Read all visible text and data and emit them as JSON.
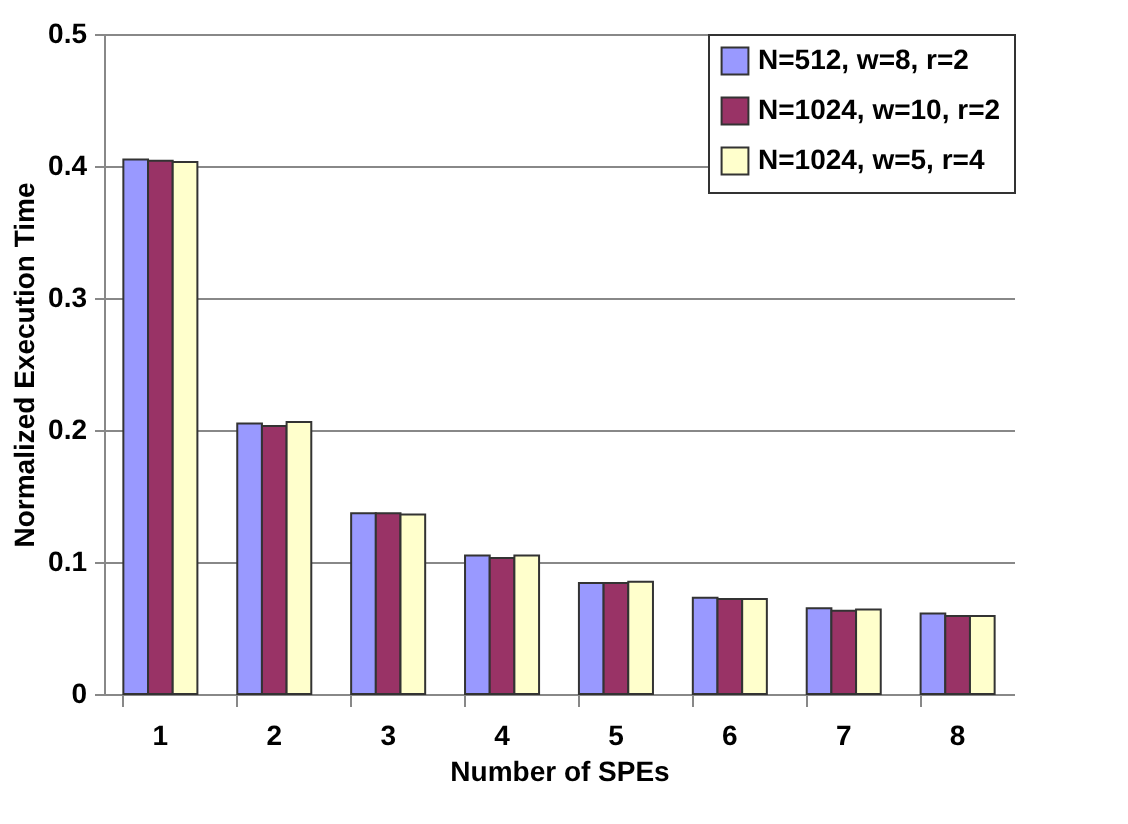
{
  "chart_data": {
    "type": "bar",
    "xlabel": "Number of SPEs",
    "ylabel": "Normalized Execution Time",
    "categories": [
      "1",
      "2",
      "3",
      "4",
      "5",
      "6",
      "7",
      "8"
    ],
    "series": [
      {
        "name": "N=512, w=8, r=2",
        "color": "#9999ff",
        "values": [
          0.405,
          0.205,
          0.137,
          0.105,
          0.084,
          0.073,
          0.065,
          0.061
        ]
      },
      {
        "name": "N=1024, w=10, r=2",
        "color": "#993366",
        "values": [
          0.404,
          0.203,
          0.137,
          0.103,
          0.084,
          0.072,
          0.063,
          0.059
        ]
      },
      {
        "name": "N=1024, w=5, r=4",
        "color": "#ffffcc",
        "values": [
          0.403,
          0.206,
          0.136,
          0.105,
          0.085,
          0.072,
          0.064,
          0.059
        ]
      }
    ],
    "ylim": [
      0,
      0.5
    ],
    "yticks": [
      0,
      0.1,
      0.2,
      0.3,
      0.4,
      0.5
    ],
    "grid": "y",
    "legend": "top right"
  }
}
